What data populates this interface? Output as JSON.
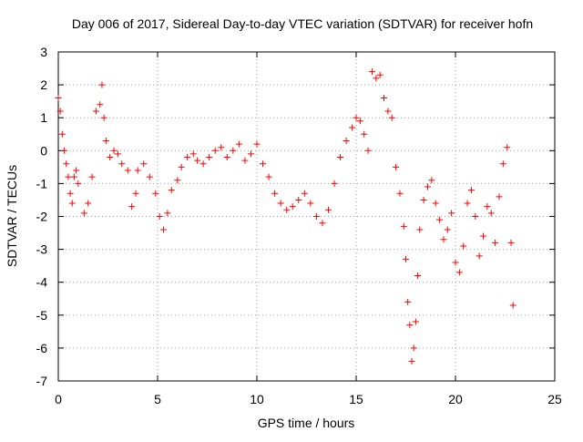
{
  "chart_data": {
    "type": "scatter",
    "title": "Day 006 of 2017, Sidereal Day-to-day VTEC variation (SDTVAR) for receiver hofn",
    "xlabel": "GPS time / hours",
    "ylabel": "SDTVAR / TECUs",
    "xlim": [
      0,
      25
    ],
    "ylim": [
      -7,
      3
    ],
    "xticks": [
      "0",
      "5",
      "10",
      "15",
      "20",
      "25"
    ],
    "yticks": [
      "3",
      "2",
      "1",
      "0",
      "-1",
      "-2",
      "-3",
      "-4",
      "-5",
      "-6",
      "-7"
    ],
    "grid": true,
    "marker": "+",
    "series": [
      {
        "name": "SDTVAR",
        "color": "#ff0000",
        "x": [
          0.0,
          0.1,
          0.2,
          0.3,
          0.4,
          0.5,
          0.6,
          0.7,
          0.8,
          0.9,
          1.0,
          1.3,
          1.5,
          1.7,
          1.9,
          2.1,
          2.2,
          2.3,
          2.4,
          2.6,
          2.8,
          3.0,
          3.2,
          3.5,
          3.7,
          3.9,
          4.0,
          4.3,
          4.6,
          4.9,
          5.1,
          5.3,
          5.5,
          5.7,
          6.0,
          6.2,
          6.5,
          6.8,
          7.0,
          7.3,
          7.6,
          7.9,
          8.2,
          8.5,
          8.8,
          9.1,
          9.4,
          9.7,
          10.0,
          10.3,
          10.6,
          10.9,
          11.2,
          11.5,
          11.8,
          12.1,
          12.4,
          12.7,
          13.0,
          13.3,
          13.6,
          13.9,
          14.2,
          14.5,
          14.8,
          15.0,
          15.2,
          15.4,
          15.6,
          15.8,
          16.0,
          16.2,
          16.4,
          16.6,
          16.8,
          17.0,
          17.2,
          17.4,
          17.5,
          17.6,
          17.7,
          17.8,
          17.9,
          18.0,
          18.1,
          18.2,
          18.4,
          18.6,
          18.8,
          19.0,
          19.2,
          19.4,
          19.6,
          19.8,
          20.0,
          20.2,
          20.4,
          20.6,
          20.8,
          21.0,
          21.2,
          21.4,
          21.6,
          21.8,
          22.0,
          22.2,
          22.4,
          22.6,
          22.8,
          22.9
        ],
        "y": [
          1.6,
          1.2,
          0.5,
          0.0,
          -0.4,
          -0.8,
          -1.3,
          -1.6,
          -0.8,
          -0.6,
          -1.0,
          -1.9,
          -1.6,
          -0.8,
          1.2,
          1.4,
          2.0,
          1.0,
          0.3,
          -0.2,
          0.0,
          -0.1,
          -0.4,
          -0.6,
          -1.7,
          -1.3,
          -0.6,
          -0.4,
          -0.8,
          -1.3,
          -2.0,
          -2.4,
          -1.9,
          -1.2,
          -0.9,
          -0.5,
          -0.2,
          -0.1,
          -0.3,
          -0.4,
          -0.2,
          0.0,
          0.1,
          -0.2,
          0.0,
          0.2,
          -0.3,
          -0.1,
          0.2,
          -0.4,
          -0.8,
          -1.3,
          -1.6,
          -1.8,
          -1.7,
          -1.5,
          -1.3,
          -1.6,
          -2.0,
          -2.2,
          -1.8,
          -1.0,
          -0.2,
          0.3,
          0.7,
          1.0,
          0.9,
          0.5,
          0.0,
          2.4,
          2.2,
          2.3,
          1.6,
          1.2,
          1.0,
          -0.5,
          -1.3,
          -2.3,
          -3.3,
          -4.6,
          -5.3,
          -6.4,
          -6.0,
          -5.2,
          -3.8,
          -2.4,
          -1.5,
          -1.1,
          -0.9,
          -1.6,
          -2.1,
          -2.7,
          -2.4,
          -1.9,
          -3.4,
          -3.7,
          -2.9,
          -1.6,
          -1.2,
          -2.0,
          -3.2,
          -2.6,
          -1.7,
          -1.9,
          -2.8,
          -1.4,
          -0.4,
          0.1,
          -2.8,
          -4.7
        ]
      }
    ]
  }
}
